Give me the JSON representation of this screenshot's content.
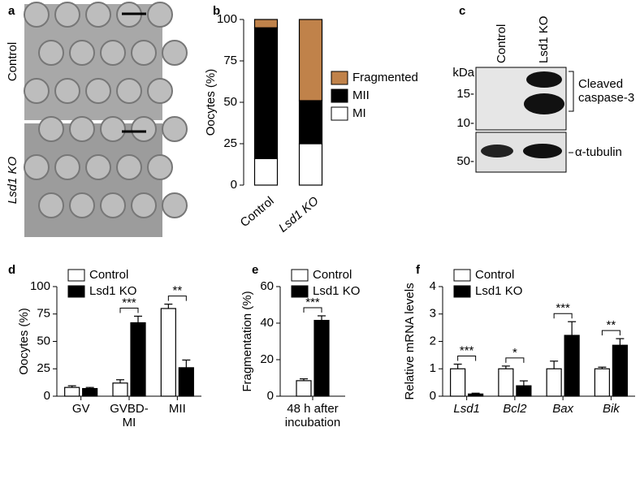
{
  "figure": {
    "panel_labels": [
      "a",
      "b",
      "c",
      "d",
      "e",
      "f"
    ],
    "images": {
      "rows": [
        "Control",
        "Lsd1 KO"
      ]
    },
    "blot": {
      "lanes": [
        "Control",
        "Lsd1 KO"
      ],
      "unit": "kDa",
      "markers": [
        "15-",
        "10-",
        "50-"
      ],
      "bands": [
        "Cleaved\ncaspase-3",
        "α-tubulin"
      ]
    }
  },
  "chart_data": [
    {
      "type": "stacked_bar",
      "ylabel": "Oocytes (%)",
      "categories": [
        "Control",
        "Lsd1 KO"
      ],
      "series": [
        {
          "name": "MI",
          "color": "#ffffff",
          "values": [
            16,
            25
          ]
        },
        {
          "name": "MII",
          "color": "#000000",
          "values": [
            79,
            26
          ]
        },
        {
          "name": "Fragmented",
          "color": "#c0824a",
          "values": [
            5,
            49
          ]
        }
      ],
      "ylim": [
        0,
        100
      ],
      "yticks": [
        0,
        25,
        50,
        75,
        100
      ]
    },
    {
      "type": "bar",
      "ylabel": "Oocytes (%)",
      "categories": [
        "GV",
        "GVBD-\nMI",
        "MII"
      ],
      "series": [
        {
          "name": "Control",
          "color": "#ffffff",
          "values": [
            8,
            12,
            80
          ],
          "errors": [
            1.5,
            3,
            4
          ]
        },
        {
          "name": "Lsd1 KO",
          "color": "#000000",
          "values": [
            7,
            67,
            26
          ],
          "errors": [
            1,
            6,
            7
          ]
        }
      ],
      "significance": [
        null,
        "***",
        "**"
      ],
      "ylim": [
        0,
        100
      ],
      "yticks": [
        0,
        25,
        50,
        75,
        100
      ]
    },
    {
      "type": "bar",
      "ylabel": "Fragmentation (%)",
      "categories": [
        "48 h after\nincubation"
      ],
      "series": [
        {
          "name": "Control",
          "color": "#ffffff",
          "values": [
            8.5
          ],
          "errors": [
            1
          ]
        },
        {
          "name": "Lsd1 KO",
          "color": "#000000",
          "values": [
            41.5
          ],
          "errors": [
            2.5
          ]
        }
      ],
      "significance": [
        "***"
      ],
      "ylim": [
        0,
        60
      ],
      "yticks": [
        0,
        20,
        40,
        60
      ]
    },
    {
      "type": "bar",
      "ylabel": "Relative mRNA levels",
      "categories": [
        "Lsd1",
        "Bcl2",
        "Bax",
        "Bik"
      ],
      "category_style": "italic",
      "series": [
        {
          "name": "Control",
          "color": "#ffffff",
          "values": [
            1,
            1,
            1,
            1
          ],
          "errors": [
            0.17,
            0.1,
            0.28,
            0.06
          ]
        },
        {
          "name": "Lsd1 KO",
          "color": "#000000",
          "values": [
            0.08,
            0.38,
            2.22,
            1.86
          ],
          "errors": [
            0.03,
            0.18,
            0.5,
            0.24
          ]
        }
      ],
      "significance": [
        "***",
        "*",
        "***",
        "**"
      ],
      "ylim": [
        0,
        4
      ],
      "yticks": [
        0,
        1,
        2,
        3,
        4
      ]
    }
  ]
}
